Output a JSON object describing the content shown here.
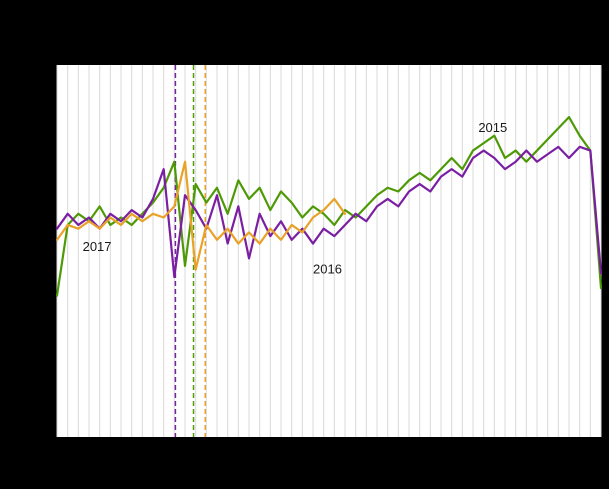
{
  "page": {
    "background": "#000000"
  },
  "chart_data": {
    "type": "line",
    "xlabel": "",
    "ylabel": "",
    "x_range": [
      1,
      52
    ],
    "ylim": [
      0,
      100
    ],
    "grid": "vertical-weekly",
    "grid_color": "#d9d9d9",
    "plot_bg": "#ffffff",
    "annotation_color": "#1a1a1a",
    "series": [
      {
        "name": "2015",
        "color": "#4e9a06",
        "x": [
          1,
          2,
          3,
          4,
          5,
          6,
          7,
          8,
          9,
          10,
          11,
          12,
          13,
          14,
          15,
          16,
          17,
          18,
          19,
          20,
          21,
          22,
          23,
          24,
          25,
          26,
          27,
          28,
          29,
          30,
          31,
          32,
          33,
          34,
          35,
          36,
          37,
          38,
          39,
          40,
          41,
          42,
          43,
          44,
          45,
          46,
          47,
          48,
          49,
          50,
          51,
          52
        ],
        "values": [
          38,
          57,
          60,
          58,
          62,
          57,
          59,
          57,
          60,
          63,
          67,
          74,
          46,
          68,
          63,
          67,
          60,
          69,
          64,
          67,
          61,
          66,
          63,
          59,
          62,
          60,
          57,
          61,
          59,
          62,
          65,
          67,
          66,
          69,
          71,
          69,
          72,
          75,
          72,
          77,
          79,
          81,
          75,
          77,
          74,
          77,
          80,
          83,
          86,
          81,
          77,
          40
        ]
      },
      {
        "name": "2016",
        "color": "#7a1fa2",
        "x": [
          1,
          2,
          3,
          4,
          5,
          6,
          7,
          8,
          9,
          10,
          11,
          12,
          13,
          14,
          15,
          16,
          17,
          18,
          19,
          20,
          21,
          22,
          23,
          24,
          25,
          26,
          27,
          28,
          29,
          30,
          31,
          32,
          33,
          34,
          35,
          36,
          37,
          38,
          39,
          40,
          41,
          42,
          43,
          44,
          45,
          46,
          47,
          48,
          49,
          50,
          51,
          52
        ],
        "values": [
          56,
          60,
          57,
          59,
          56,
          60,
          58,
          61,
          59,
          64,
          72,
          43,
          65,
          61,
          56,
          65,
          52,
          62,
          48,
          60,
          54,
          58,
          53,
          56,
          52,
          56,
          54,
          57,
          60,
          58,
          62,
          64,
          62,
          66,
          68,
          66,
          70,
          72,
          70,
          75,
          77,
          75,
          72,
          74,
          77,
          74,
          76,
          78,
          75,
          78,
          77,
          44
        ]
      },
      {
        "name": "2017",
        "color": "#e9a227",
        "x": [
          1,
          2,
          3,
          4,
          5,
          6,
          7,
          8,
          9,
          10,
          11,
          12,
          13,
          14,
          15,
          16,
          17,
          18,
          19,
          20,
          21,
          22,
          23,
          24,
          25,
          26,
          27,
          28
        ],
        "values": [
          53,
          57,
          56,
          58,
          56,
          59,
          57,
          60,
          58,
          60,
          59,
          62,
          74,
          45,
          57,
          53,
          56,
          52,
          55,
          52,
          56,
          53,
          57,
          55,
          59,
          61,
          64,
          60
        ]
      }
    ],
    "markers": [
      {
        "series": "2016",
        "color": "#7a1fa2",
        "week": 12.1,
        "style": "dashed"
      },
      {
        "series": "2015",
        "color": "#4e9a06",
        "week": 13.8,
        "style": "dashed"
      },
      {
        "series": "2017",
        "color": "#e9a227",
        "week": 14.9,
        "style": "dashed"
      }
    ],
    "annotations": [
      {
        "text": "2017",
        "week": 3.4,
        "value": 50
      },
      {
        "text": "2016",
        "week": 25.0,
        "value": 44
      },
      {
        "text": "2015",
        "week": 40.5,
        "value": 82
      }
    ]
  }
}
